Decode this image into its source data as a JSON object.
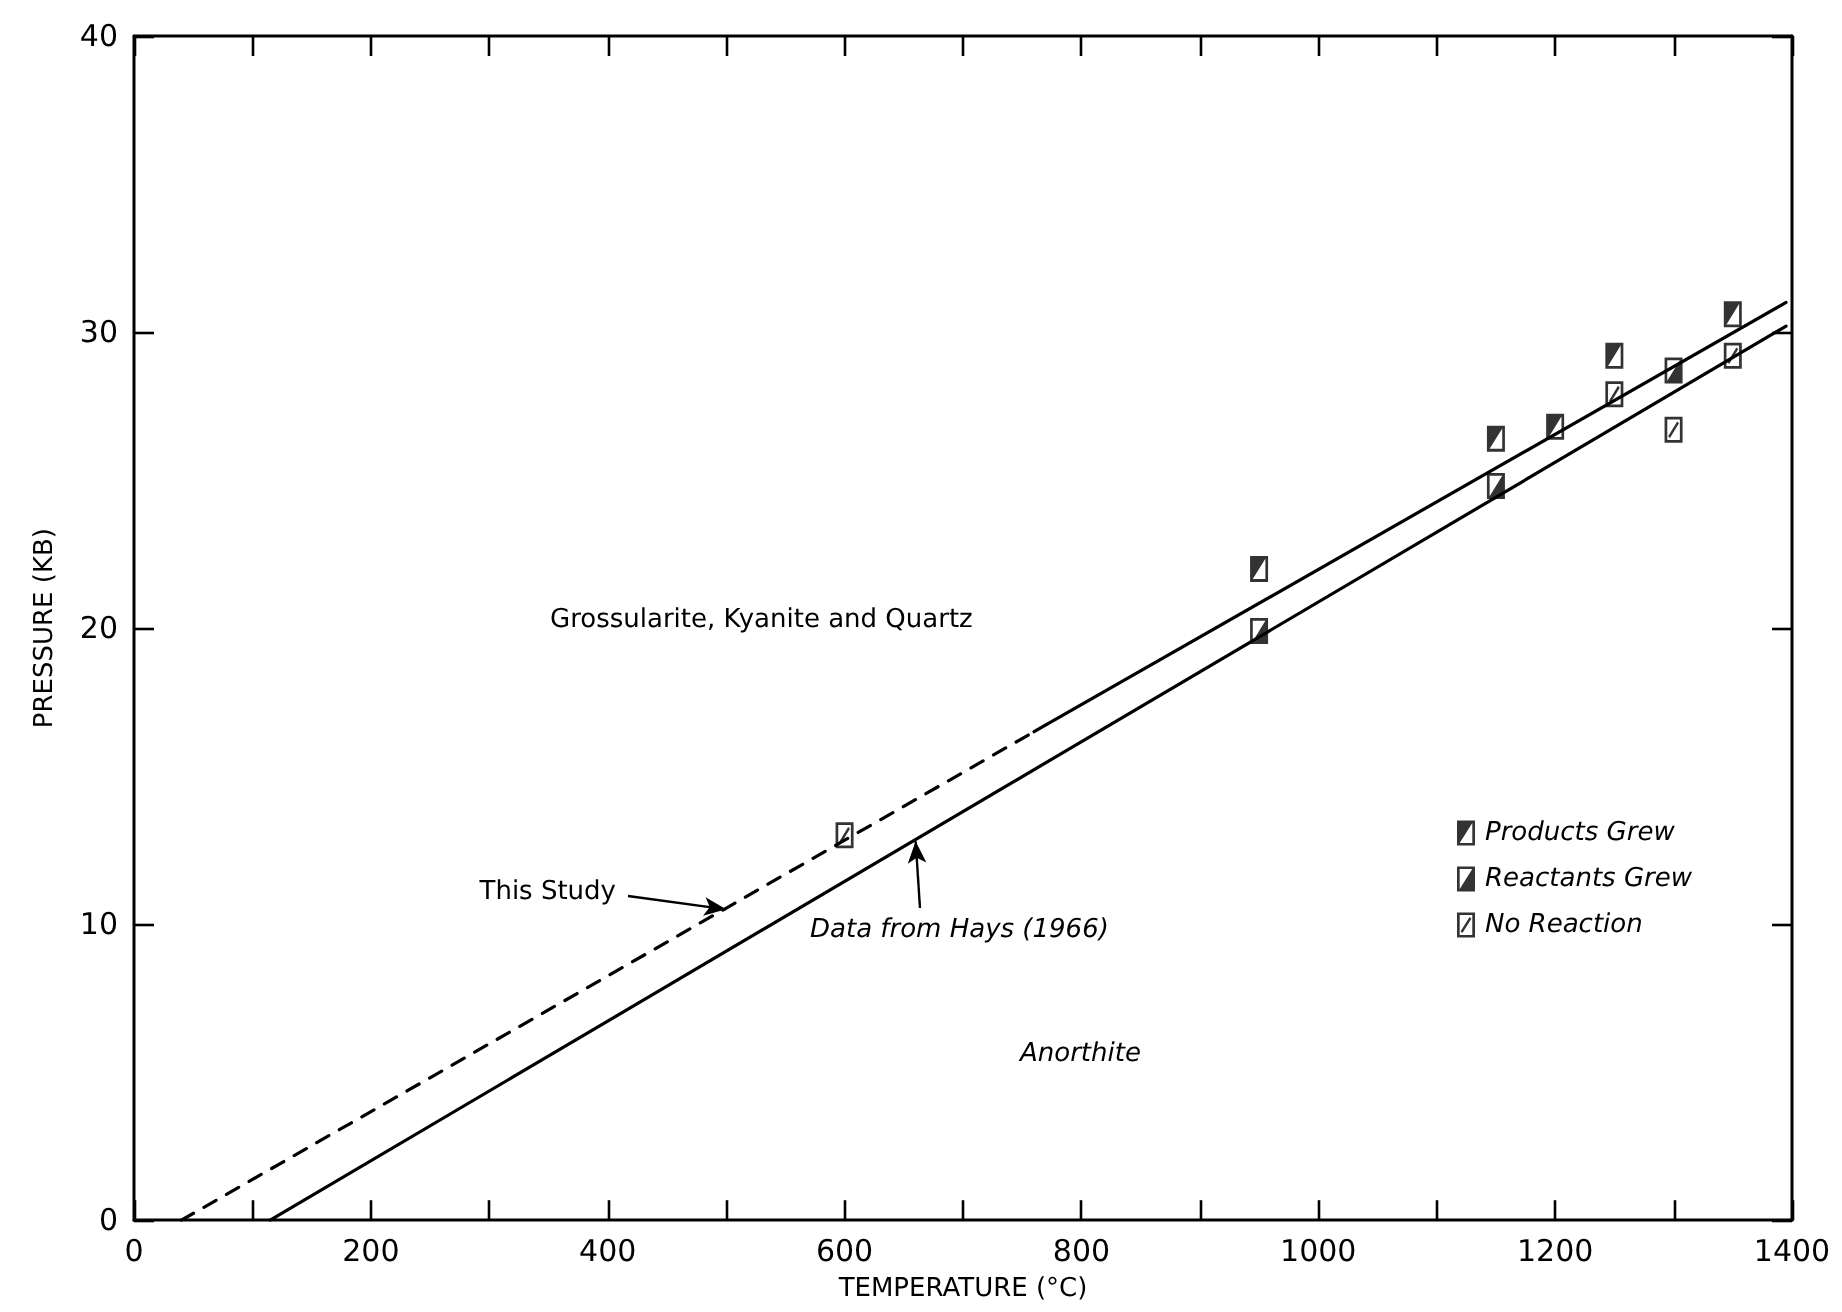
{
  "chart_data": {
    "type": "scatter",
    "xlabel": "TEMPERATURE (°C)",
    "ylabel": "PRESSURE (KB)",
    "xlim": [
      0,
      1400
    ],
    "ylim": [
      0,
      40
    ],
    "xticks": [
      0,
      {
        "value": 100,
        "label": null
      },
      200,
      {
        "value": 300,
        "label": null
      },
      400,
      {
        "value": 500,
        "label": null
      },
      600,
      {
        "value": 700,
        "label": null
      },
      800,
      {
        "value": 900,
        "label": null
      },
      1000,
      {
        "value": 1100,
        "label": null
      },
      1200,
      {
        "value": 1300,
        "label": null
      },
      1400
    ],
    "yticks": [
      0,
      10,
      20,
      30,
      40
    ],
    "grid": false,
    "legend": "bottom right",
    "annotations": [
      "Grossularite, Kyanite and Quartz",
      "Anorthite",
      {
        "text": "This Study",
        "x": 500,
        "y": 10.5
      },
      {
        "text": "Data from Hays (1966)",
        "x": 660,
        "y": 12.8
      }
    ],
    "series": [
      {
        "type": "line",
        "color": "#000000",
        "x": [
          40,
          760
        ],
        "values": [
          0,
          16.5
        ],
        "line_style": "dashed",
        "marker": "none"
      },
      {
        "type": "line",
        "color": "#000000",
        "x": [
          760,
          1395
        ],
        "values": [
          16.5,
          31
        ],
        "line_style": "solid",
        "marker": "none"
      },
      {
        "type": "line",
        "color": "#000000",
        "x": [
          115,
          1395
        ],
        "values": [
          0,
          30.2
        ],
        "line_style": "solid",
        "marker": "none"
      },
      {
        "name": "Products Grew",
        "color": "#000000",
        "x": [
          950,
          1150,
          1200,
          1250,
          1350
        ],
        "values": [
          22,
          26.4,
          26.8,
          29.2,
          30.6
        ]
      },
      {
        "name": "Reactants Grew",
        "color": "#000000",
        "x": [
          950,
          1150,
          1300
        ],
        "values": [
          19.9,
          24.8,
          28.7
        ]
      },
      {
        "name": "No Reaction",
        "color": "#000000",
        "x": [
          600,
          1250,
          1300,
          1350
        ],
        "values": [
          13,
          27.9,
          26.7,
          29.2
        ]
      }
    ]
  }
}
